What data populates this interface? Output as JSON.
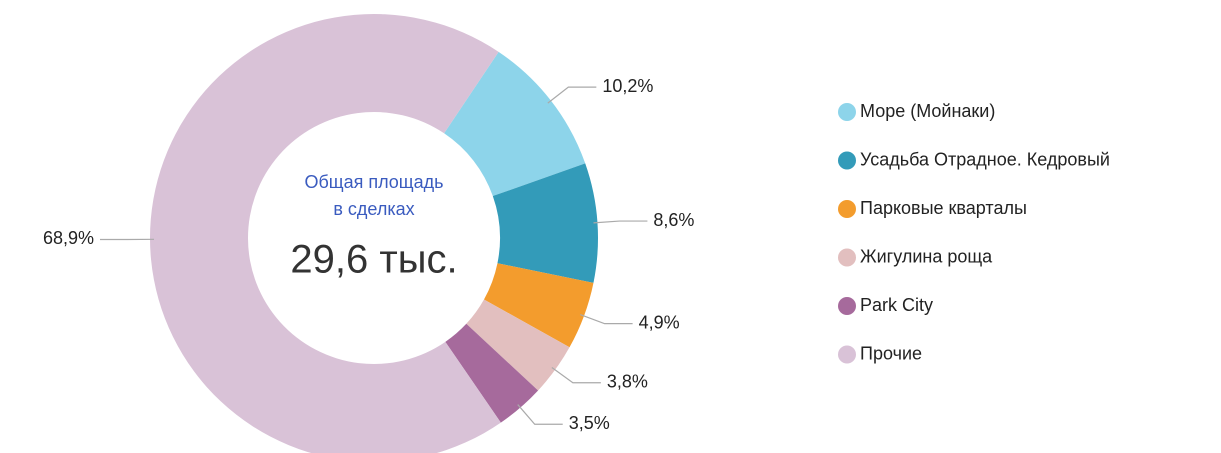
{
  "chart_data": {
    "type": "donut",
    "center_title": [
      "Общая площадь",
      "в сделках"
    ],
    "center_value": "29,6 тыс.",
    "categories": [
      "Море (Мойнаки)",
      "Усадьба Отрадное. Кедровый",
      "Парковые кварталы",
      "Жигулина роща",
      "Park City",
      "Прочие"
    ],
    "values": [
      10.2,
      8.6,
      4.9,
      3.8,
      3.5,
      68.9
    ],
    "value_labels": [
      "10,2%",
      "8,6%",
      "4,9%",
      "3,8%",
      "3,5%",
      "68,9%"
    ],
    "colors": [
      "#8dd4ea",
      "#339bb9",
      "#f39c2d",
      "#e2bfbf",
      "#a66a9c",
      "#d9c2d7"
    ],
    "legend": "right"
  }
}
